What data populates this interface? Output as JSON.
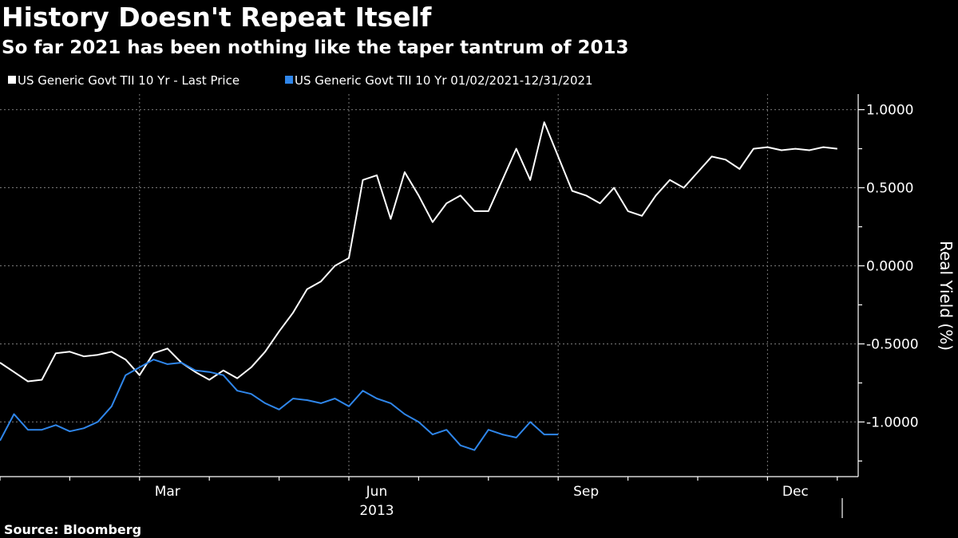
{
  "chart_data": {
    "type": "line",
    "title": "History Doesn't Repeat Itself",
    "subtitle": "So far 2021 has been nothing like the taper tantrum of 2013",
    "ylabel": "Real Yield (%)",
    "xlabel": "",
    "ylim": [
      -1.35,
      1.1
    ],
    "yticks": [
      "1.0000",
      "0.5000",
      "0.0000",
      "-0.5000",
      "-1.0000"
    ],
    "ytick_values": [
      1.0,
      0.5,
      0.0,
      -0.5,
      -1.0
    ],
    "x_range": [
      0,
      12.3
    ],
    "xticks_labeled": [
      {
        "label": "Mar",
        "month": 2.4
      },
      {
        "label": "Jun",
        "month": 5.4
      },
      {
        "label": "Sep",
        "month": 8.4
      },
      {
        "label": "Dec",
        "month": 11.4
      }
    ],
    "year_label": {
      "label": "2013",
      "month": 5.4
    },
    "grid": true,
    "legend_position": "top-left",
    "source": "Source: Bloomberg",
    "colors": {
      "series_2013": "#ffffff",
      "series_2021": "#2f86ea"
    },
    "series": [
      {
        "name": "US Generic Govt TII 10 Yr - Last Price",
        "color": "#ffffff",
        "x": [
          0.0,
          0.2,
          0.4,
          0.6,
          0.8,
          1.0,
          1.2,
          1.4,
          1.6,
          1.8,
          2.0,
          2.2,
          2.4,
          2.6,
          2.8,
          3.0,
          3.2,
          3.4,
          3.6,
          3.8,
          4.0,
          4.2,
          4.4,
          4.6,
          4.8,
          5.0,
          5.2,
          5.4,
          5.6,
          5.8,
          6.0,
          6.2,
          6.4,
          6.6,
          6.8,
          7.0,
          7.2,
          7.4,
          7.6,
          7.8,
          8.0,
          8.2,
          8.4,
          8.6,
          8.8,
          9.0,
          9.2,
          9.4,
          9.6,
          9.8,
          10.0,
          10.2,
          10.4,
          10.6,
          10.8,
          11.0,
          11.2,
          11.4,
          11.6,
          11.8,
          12.0
        ],
        "values": [
          -0.62,
          -0.68,
          -0.74,
          -0.73,
          -0.56,
          -0.55,
          -0.58,
          -0.57,
          -0.55,
          -0.6,
          -0.7,
          -0.56,
          -0.53,
          -0.62,
          -0.68,
          -0.73,
          -0.67,
          -0.72,
          -0.65,
          -0.55,
          -0.42,
          -0.3,
          -0.15,
          -0.1,
          0.0,
          0.05,
          0.55,
          0.58,
          0.3,
          0.6,
          0.45,
          0.28,
          0.4,
          0.45,
          0.35,
          0.35,
          0.55,
          0.75,
          0.55,
          0.92,
          0.7,
          0.48,
          0.45,
          0.4,
          0.5,
          0.35,
          0.32,
          0.45,
          0.55,
          0.5,
          0.6,
          0.7,
          0.68,
          0.62,
          0.75,
          0.76,
          0.74,
          0.75,
          0.74,
          0.76,
          0.75
        ]
      },
      {
        "name": "US Generic Govt TII 10 Yr 01/02/2021-12/31/2021",
        "color": "#2f86ea",
        "x": [
          0.0,
          0.2,
          0.4,
          0.6,
          0.8,
          1.0,
          1.2,
          1.4,
          1.6,
          1.8,
          2.0,
          2.2,
          2.4,
          2.6,
          2.8,
          3.0,
          3.2,
          3.4,
          3.6,
          3.8,
          4.0,
          4.2,
          4.4,
          4.6,
          4.8,
          5.0,
          5.2,
          5.4,
          5.6,
          5.8,
          6.0,
          6.2,
          6.4,
          6.6,
          6.8,
          7.0,
          7.2,
          7.4,
          7.6,
          7.8,
          8.0
        ],
        "values": [
          -1.12,
          -0.95,
          -1.05,
          -1.05,
          -1.02,
          -1.06,
          -1.04,
          -1.0,
          -0.9,
          -0.7,
          -0.65,
          -0.6,
          -0.63,
          -0.62,
          -0.67,
          -0.68,
          -0.7,
          -0.8,
          -0.82,
          -0.88,
          -0.92,
          -0.85,
          -0.86,
          -0.88,
          -0.85,
          -0.9,
          -0.8,
          -0.85,
          -0.88,
          -0.95,
          -1.0,
          -1.08,
          -1.05,
          -1.15,
          -1.18,
          -1.05,
          -1.08,
          -1.1,
          -1.0,
          -1.08,
          -1.08
        ]
      }
    ]
  }
}
